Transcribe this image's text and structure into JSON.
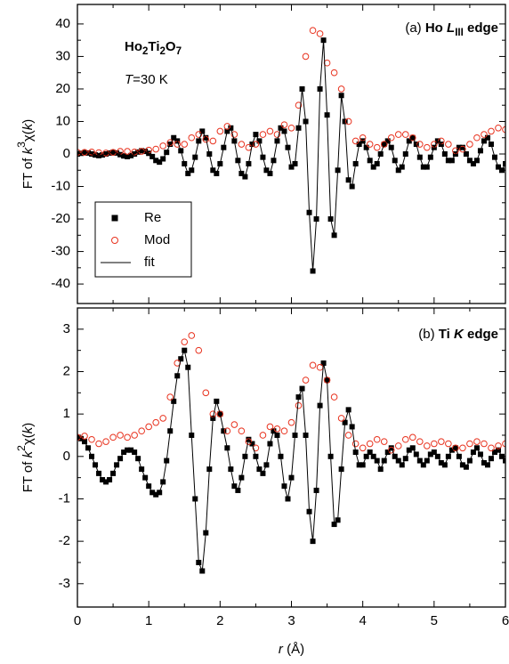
{
  "chart_data": [
    {
      "type": "scatter",
      "ylabel": [
        {
          "text": "FT of ",
          "style": "normal"
        },
        {
          "text": "k",
          "style": "italic"
        },
        {
          "text": "3",
          "style": "sup"
        },
        {
          "text": "χ(",
          "style": "normal"
        },
        {
          "text": "k",
          "style": "italic"
        },
        {
          "text": ")",
          "style": "normal"
        }
      ],
      "annotations": [
        [
          {
            "text": "(a) ",
            "style": "normal"
          },
          {
            "text": "Ho ",
            "style": "bold"
          },
          {
            "text": "L",
            "style": "bold-italic"
          },
          {
            "text": "III",
            "style": "bold-sub"
          },
          {
            "text": " edge",
            "style": "bold"
          }
        ],
        [
          {
            "text": "Ho",
            "style": "bold"
          },
          {
            "text": "2",
            "style": "bold-sub"
          },
          {
            "text": "Ti",
            "style": "bold"
          },
          {
            "text": "2",
            "style": "bold-sub"
          },
          {
            "text": "O",
            "style": "bold"
          },
          {
            "text": "7",
            "style": "bold-sub"
          }
        ],
        [
          {
            "text": "T",
            "style": "italic"
          },
          {
            "text": "=30 K",
            "style": "normal"
          }
        ]
      ],
      "xlim": [
        0,
        6
      ],
      "xticks": [
        0,
        1,
        2,
        3,
        4,
        5,
        6
      ],
      "xticklabels": false,
      "ylim": [
        -46,
        46
      ],
      "yticks": [
        -40,
        -30,
        -20,
        -10,
        0,
        10,
        20,
        30,
        40
      ],
      "legend": "center left",
      "x": [
        0,
        0.05,
        0.1,
        0.15,
        0.2,
        0.25,
        0.3,
        0.35,
        0.4,
        0.45,
        0.5,
        0.55,
        0.6,
        0.65,
        0.7,
        0.75,
        0.8,
        0.85,
        0.9,
        0.95,
        1,
        1.05,
        1.1,
        1.15,
        1.2,
        1.25,
        1.3,
        1.35,
        1.4,
        1.45,
        1.5,
        1.55,
        1.6,
        1.65,
        1.7,
        1.75,
        1.8,
        1.85,
        1.9,
        1.95,
        2,
        2.05,
        2.1,
        2.15,
        2.2,
        2.25,
        2.3,
        2.35,
        2.4,
        2.45,
        2.5,
        2.55,
        2.6,
        2.65,
        2.7,
        2.75,
        2.8,
        2.85,
        2.9,
        2.95,
        3,
        3.05,
        3.1,
        3.15,
        3.2,
        3.25,
        3.3,
        3.35,
        3.4,
        3.45,
        3.5,
        3.55,
        3.6,
        3.65,
        3.7,
        3.75,
        3.8,
        3.85,
        3.9,
        3.95,
        4,
        4.05,
        4.1,
        4.15,
        4.2,
        4.25,
        4.3,
        4.35,
        4.4,
        4.45,
        4.5,
        4.55,
        4.6,
        4.65,
        4.7,
        4.75,
        4.8,
        4.85,
        4.9,
        4.95,
        5,
        5.05,
        5.1,
        5.15,
        5.2,
        5.25,
        5.3,
        5.35,
        5.4,
        5.45,
        5.5,
        5.55,
        5.6,
        5.65,
        5.7,
        5.75,
        5.8,
        5.85,
        5.9,
        5.95,
        6
      ],
      "series": [
        {
          "name": "Re",
          "marker": "square",
          "color": "#000000",
          "values": [
            0,
            0.2,
            0.4,
            0.3,
            0,
            -0.3,
            -0.5,
            -0.3,
            0,
            0.3,
            0.5,
            0.3,
            -0.2,
            -0.6,
            -0.8,
            -0.5,
            0,
            0.6,
            1,
            0.8,
            0.2,
            -0.8,
            -2,
            -2.5,
            -1.5,
            0.5,
            3,
            5,
            4,
            1,
            -3,
            -6,
            -5,
            -1,
            4,
            7,
            5,
            0,
            -5,
            -6,
            -3,
            2,
            7,
            8,
            4,
            -2,
            -6,
            -7,
            -3,
            3,
            6,
            4,
            -1,
            -5,
            -6,
            -2,
            4,
            8,
            7,
            2,
            -4,
            -3,
            8,
            20,
            10,
            -18,
            -36,
            -20,
            20,
            35,
            12,
            -20,
            -25,
            -5,
            18,
            10,
            -8,
            -10,
            -3,
            3,
            4,
            2,
            -2,
            -4,
            -3,
            0,
            3,
            4,
            2,
            -2,
            -5,
            -4,
            0,
            4,
            5,
            3,
            -1,
            -4,
            -4,
            -1,
            2,
            4,
            3,
            0,
            -2,
            -2,
            0,
            2,
            2,
            0,
            -2,
            -3,
            -2,
            1,
            4,
            5,
            3,
            -1,
            -4,
            -5,
            -3
          ]
        },
        {
          "name": "Mod",
          "marker": "circle",
          "color": "#e8321e",
          "x": [
            0,
            0.1,
            0.2,
            0.3,
            0.4,
            0.5,
            0.6,
            0.7,
            0.8,
            0.9,
            1,
            1.1,
            1.2,
            1.3,
            1.4,
            1.5,
            1.6,
            1.7,
            1.8,
            1.9,
            2,
            2.1,
            2.2,
            2.3,
            2.4,
            2.5,
            2.6,
            2.7,
            2.8,
            2.9,
            3,
            3.1,
            3.2,
            3.3,
            3.4,
            3.5,
            3.6,
            3.7,
            3.8,
            3.9,
            4,
            4.1,
            4.2,
            4.3,
            4.4,
            4.5,
            4.6,
            4.7,
            4.8,
            4.9,
            5,
            5.1,
            5.2,
            5.3,
            5.4,
            5.5,
            5.6,
            5.7,
            5.8,
            5.9,
            6
          ],
          "values": [
            0.5,
            0.5,
            0.6,
            0.4,
            0.3,
            0.5,
            0.8,
            0.8,
            0.6,
            0.8,
            1.2,
            1.5,
            2.5,
            3.5,
            3,
            3,
            5,
            6,
            4.5,
            4,
            7,
            8.5,
            6,
            3,
            2,
            3,
            6,
            7,
            6,
            9,
            8,
            15,
            30,
            38,
            37,
            28,
            25,
            20,
            10,
            4,
            5,
            3,
            2,
            3,
            5,
            6,
            6,
            5,
            3,
            2,
            3,
            4,
            3,
            1,
            1.5,
            3,
            5,
            6,
            7,
            8,
            7.5
          ]
        },
        {
          "name": "fit",
          "marker": "line",
          "color": "#000000",
          "values": [
            0,
            0.2,
            0.4,
            0.3,
            0,
            -0.3,
            -0.5,
            -0.3,
            0,
            0.3,
            0.5,
            0.3,
            -0.2,
            -0.6,
            -0.8,
            -0.5,
            0,
            0.6,
            1,
            0.8,
            0.2,
            -0.8,
            -2,
            -2.5,
            -1.5,
            0.5,
            3,
            5,
            4,
            1,
            -3,
            -6,
            -5,
            -1,
            4,
            7,
            5,
            0,
            -5,
            -6,
            -3,
            2,
            7,
            8,
            4,
            -2,
            -6,
            -7,
            -3,
            3,
            6,
            4,
            -1,
            -5,
            -6,
            -2,
            4,
            8,
            7,
            2,
            -4,
            -3,
            8,
            20,
            10,
            -18,
            -36,
            -20,
            20,
            35,
            12,
            -20,
            -25,
            -5,
            18,
            10,
            -8,
            -10,
            -3,
            3,
            4,
            2,
            -2,
            -4,
            -3,
            0,
            3,
            4,
            2,
            -2,
            -5,
            -4,
            0,
            4,
            5,
            3,
            -1,
            -4,
            -4,
            -1,
            2,
            4,
            3,
            0,
            -2,
            -2,
            0,
            2,
            2,
            0,
            -2,
            -3,
            -2,
            1,
            4,
            5,
            3,
            -1,
            -4,
            -5,
            -3
          ]
        }
      ]
    },
    {
      "type": "scatter",
      "ylabel": [
        {
          "text": "FT of ",
          "style": "normal"
        },
        {
          "text": "k",
          "style": "italic"
        },
        {
          "text": "2",
          "style": "sup"
        },
        {
          "text": "χ(",
          "style": "normal"
        },
        {
          "text": "k",
          "style": "italic"
        },
        {
          "text": ")",
          "style": "normal"
        }
      ],
      "xlabel": [
        {
          "text": "r",
          "style": "italic"
        },
        {
          "text": " (Å)",
          "style": "normal"
        }
      ],
      "annotations": [
        [
          {
            "text": "(b) ",
            "style": "normal"
          },
          {
            "text": "Ti ",
            "style": "bold"
          },
          {
            "text": "K",
            "style": "bold-italic"
          },
          {
            "text": " edge",
            "style": "bold"
          }
        ]
      ],
      "xlim": [
        0,
        6
      ],
      "xticks": [
        0,
        1,
        2,
        3,
        4,
        5,
        6
      ],
      "xticklabels": true,
      "ylim": [
        -3.55,
        3.5
      ],
      "yticks": [
        -3,
        -2,
        -1,
        0,
        1,
        2,
        3
      ],
      "x": [
        0,
        0.05,
        0.1,
        0.15,
        0.2,
        0.25,
        0.3,
        0.35,
        0.4,
        0.45,
        0.5,
        0.55,
        0.6,
        0.65,
        0.7,
        0.75,
        0.8,
        0.85,
        0.9,
        0.95,
        1,
        1.05,
        1.1,
        1.15,
        1.2,
        1.25,
        1.3,
        1.35,
        1.4,
        1.45,
        1.5,
        1.55,
        1.6,
        1.65,
        1.7,
        1.75,
        1.8,
        1.85,
        1.9,
        1.95,
        2,
        2.05,
        2.1,
        2.15,
        2.2,
        2.25,
        2.3,
        2.35,
        2.4,
        2.45,
        2.5,
        2.55,
        2.6,
        2.65,
        2.7,
        2.75,
        2.8,
        2.85,
        2.9,
        2.95,
        3,
        3.05,
        3.1,
        3.15,
        3.2,
        3.25,
        3.3,
        3.35,
        3.4,
        3.45,
        3.5,
        3.55,
        3.6,
        3.65,
        3.7,
        3.75,
        3.8,
        3.85,
        3.9,
        3.95,
        4,
        4.05,
        4.1,
        4.15,
        4.2,
        4.25,
        4.3,
        4.35,
        4.4,
        4.45,
        4.5,
        4.55,
        4.6,
        4.65,
        4.7,
        4.75,
        4.8,
        4.85,
        4.9,
        4.95,
        5,
        5.05,
        5.1,
        5.15,
        5.2,
        5.25,
        5.3,
        5.35,
        5.4,
        5.45,
        5.5,
        5.55,
        5.6,
        5.65,
        5.7,
        5.75,
        5.8,
        5.85,
        5.9,
        5.95,
        6
      ],
      "series": [
        {
          "name": "Re",
          "marker": "square",
          "color": "#000000",
          "values": [
            0.45,
            0.42,
            0.35,
            0.2,
            0,
            -0.2,
            -0.4,
            -0.55,
            -0.6,
            -0.55,
            -0.4,
            -0.2,
            -0.05,
            0.1,
            0.15,
            0.15,
            0.1,
            -0.05,
            -0.3,
            -0.5,
            -0.7,
            -0.85,
            -0.9,
            -0.85,
            -0.6,
            -0.1,
            0.6,
            1.3,
            1.9,
            2.3,
            2.5,
            2.1,
            0.5,
            -1,
            -2.5,
            -2.7,
            -1.8,
            -0.3,
            0.9,
            1.3,
            1,
            0.6,
            0.2,
            -0.3,
            -0.7,
            -0.8,
            -0.5,
            0,
            0.4,
            0.3,
            0,
            -0.3,
            -0.4,
            -0.2,
            0.3,
            0.6,
            0.5,
            0,
            -0.7,
            -1,
            -0.5,
            0.5,
            1.4,
            1.6,
            0.5,
            -1.3,
            -2,
            -0.8,
            1.2,
            2.2,
            1.8,
            0,
            -1.6,
            -1.5,
            -0.3,
            0.8,
            1.1,
            0.7,
            0.1,
            -0.2,
            -0.2,
            0,
            0.1,
            0,
            -0.1,
            -0.3,
            -0.1,
            0.1,
            0.2,
            0,
            -0.1,
            -0.2,
            -0.05,
            0.15,
            0.2,
            0.05,
            -0.1,
            -0.2,
            -0.1,
            0.05,
            0.1,
            0,
            -0.15,
            -0.2,
            0,
            0.15,
            0.2,
            0,
            -0.2,
            -0.25,
            -0.1,
            0.1,
            0.2,
            0.05,
            -0.15,
            -0.2,
            -0.05,
            0.1,
            0.15,
            0,
            -0.1
          ]
        },
        {
          "name": "Mod",
          "marker": "circle",
          "color": "#e8321e",
          "x": [
            0,
            0.1,
            0.2,
            0.3,
            0.4,
            0.5,
            0.6,
            0.7,
            0.8,
            0.9,
            1,
            1.1,
            1.2,
            1.3,
            1.4,
            1.5,
            1.6,
            1.7,
            1.8,
            1.9,
            2,
            2.1,
            2.2,
            2.3,
            2.4,
            2.5,
            2.6,
            2.7,
            2.8,
            2.9,
            3,
            3.1,
            3.2,
            3.3,
            3.4,
            3.5,
            3.6,
            3.7,
            3.8,
            3.9,
            4,
            4.1,
            4.2,
            4.3,
            4.4,
            4.5,
            4.6,
            4.7,
            4.8,
            4.9,
            5,
            5.1,
            5.2,
            5.3,
            5.4,
            5.5,
            5.6,
            5.7,
            5.8,
            5.9,
            6
          ],
          "values": [
            0.45,
            0.48,
            0.4,
            0.3,
            0.35,
            0.45,
            0.5,
            0.45,
            0.5,
            0.6,
            0.7,
            0.8,
            0.9,
            1.4,
            2.2,
            2.7,
            2.85,
            2.5,
            1.5,
            1,
            1,
            0.6,
            0.75,
            0.6,
            0.35,
            0.2,
            0.5,
            0.7,
            0.65,
            0.6,
            0.8,
            1.2,
            1.8,
            2.15,
            2.1,
            1.8,
            1.4,
            0.9,
            0.5,
            0.3,
            0.2,
            0.3,
            0.4,
            0.35,
            0.15,
            0.25,
            0.4,
            0.45,
            0.35,
            0.25,
            0.3,
            0.35,
            0.3,
            0.2,
            0.2,
            0.3,
            0.35,
            0.3,
            0.2,
            0.25,
            0.3
          ]
        },
        {
          "name": "fit",
          "marker": "line",
          "color": "#000000",
          "values": [
            0.45,
            0.42,
            0.35,
            0.2,
            0,
            -0.2,
            -0.4,
            -0.55,
            -0.6,
            -0.55,
            -0.4,
            -0.2,
            -0.05,
            0.1,
            0.15,
            0.15,
            0.1,
            -0.05,
            -0.3,
            -0.5,
            -0.7,
            -0.85,
            -0.9,
            -0.85,
            -0.6,
            -0.1,
            0.6,
            1.3,
            1.9,
            2.3,
            2.5,
            2.1,
            0.5,
            -1,
            -2.5,
            -2.7,
            -1.8,
            -0.3,
            0.9,
            1.3,
            1,
            0.6,
            0.2,
            -0.3,
            -0.7,
            -0.8,
            -0.5,
            0,
            0.4,
            0.3,
            0,
            -0.3,
            -0.4,
            -0.2,
            0.3,
            0.6,
            0.5,
            0,
            -0.7,
            -1,
            -0.5,
            0.5,
            1.4,
            1.6,
            0.5,
            -1.3,
            -2,
            -0.8,
            1.2,
            2.2,
            1.8,
            0,
            -1.6,
            -1.5,
            -0.3,
            0.8,
            1.1,
            0.7,
            0.1,
            -0.2,
            -0.2,
            0,
            0.1,
            0,
            -0.1,
            -0.3,
            -0.1,
            0.1,
            0.2,
            0,
            -0.1,
            -0.2,
            -0.05,
            0.15,
            0.2,
            0.05,
            -0.1,
            -0.2,
            -0.1,
            0.05,
            0.1,
            0,
            -0.15,
            -0.2,
            0,
            0.15,
            0.2,
            0,
            -0.2,
            -0.25,
            -0.1,
            0.1,
            0.2,
            0.05,
            -0.15,
            -0.2,
            -0.05,
            0.1,
            0.15,
            0,
            -0.1
          ]
        }
      ]
    }
  ]
}
